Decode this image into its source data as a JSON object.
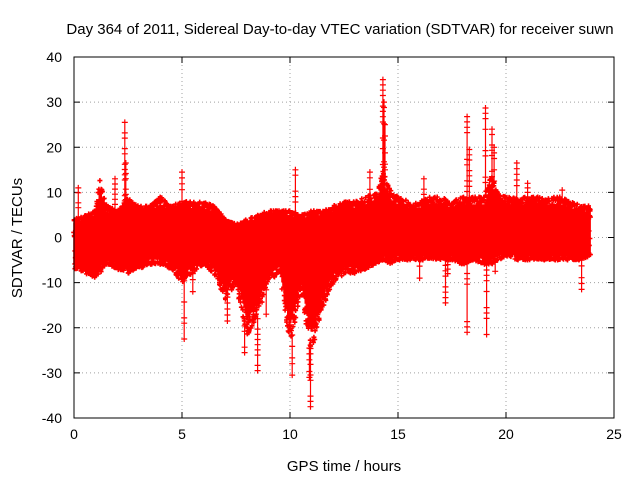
{
  "chart_data": {
    "type": "scatter",
    "title": "Day 364 of 2011, Sidereal Day-to-day VTEC variation (SDTVAR) for receiver suwn",
    "xlabel": "GPS time / hours",
    "ylabel": "SDTVAR / TECUs",
    "xlim": [
      0,
      25
    ],
    "ylim": [
      -40,
      40
    ],
    "xticks": [
      0,
      5,
      10,
      15,
      20,
      25
    ],
    "yticks": [
      -40,
      -30,
      -20,
      -10,
      0,
      10,
      20,
      30,
      40
    ],
    "grid": true,
    "marker": "+",
    "series_color": "#ff0000",
    "envelope": {
      "description": "Dense band of plus-markers; upper and lower envelope (TECU) vs GPS hour",
      "x": [
        0.0,
        0.5,
        1.0,
        1.2,
        1.5,
        2.0,
        2.5,
        3.0,
        3.5,
        4.0,
        4.5,
        5.0,
        5.5,
        6.0,
        6.5,
        7.0,
        7.5,
        8.0,
        8.5,
        9.0,
        9.5,
        10.0,
        10.5,
        11.0,
        11.5,
        12.0,
        12.5,
        13.0,
        13.5,
        14.0,
        14.3,
        14.7,
        15.0,
        15.5,
        16.0,
        16.5,
        17.0,
        17.5,
        18.0,
        18.5,
        19.0,
        19.3,
        19.7,
        20.0,
        20.5,
        21.0,
        21.5,
        22.0,
        22.5,
        23.0,
        23.5,
        23.9
      ],
      "upper": [
        4,
        5,
        6,
        13,
        7,
        6,
        9,
        7,
        7,
        9,
        7,
        8,
        8,
        8,
        7,
        4,
        3,
        4,
        5,
        6,
        6,
        6,
        5,
        6,
        6,
        7,
        8,
        8,
        9,
        10,
        15,
        10,
        9,
        8,
        8,
        9,
        9,
        8,
        9,
        9,
        9,
        14,
        10,
        9,
        9,
        9,
        9,
        9,
        9,
        8,
        7,
        7
      ],
      "lower": [
        -7,
        -8,
        -9,
        -8,
        -6,
        -7,
        -8,
        -7,
        -6,
        -6,
        -7,
        -10,
        -8,
        -6,
        -8,
        -14,
        -10,
        -22,
        -18,
        -10,
        -8,
        -24,
        -12,
        -26,
        -16,
        -10,
        -8,
        -8,
        -7,
        -6,
        -5,
        -6,
        -5,
        -5,
        -5,
        -5,
        -5,
        -5,
        -6,
        -5,
        -6,
        -6,
        -5,
        -4,
        -5,
        -5,
        -5,
        -5,
        -5,
        -5,
        -5,
        -4
      ]
    },
    "spikes": [
      {
        "x": 2.35,
        "y": 25.5
      },
      {
        "x": 2.4,
        "y": 16.5
      },
      {
        "x": 1.9,
        "y": 13
      },
      {
        "x": 0.2,
        "y": 11
      },
      {
        "x": 5.0,
        "y": 14.5
      },
      {
        "x": 5.1,
        "y": -22.5
      },
      {
        "x": 5.5,
        "y": -12
      },
      {
        "x": 7.1,
        "y": -18.5
      },
      {
        "x": 7.9,
        "y": -25.5
      },
      {
        "x": 8.5,
        "y": -29.5
      },
      {
        "x": 8.9,
        "y": -17
      },
      {
        "x": 10.1,
        "y": -30.5
      },
      {
        "x": 10.25,
        "y": 15
      },
      {
        "x": 10.95,
        "y": -37.5
      },
      {
        "x": 10.9,
        "y": -31
      },
      {
        "x": 13.7,
        "y": 14.5
      },
      {
        "x": 14.3,
        "y": 35
      },
      {
        "x": 14.35,
        "y": 30
      },
      {
        "x": 14.4,
        "y": 25
      },
      {
        "x": 16.2,
        "y": 13
      },
      {
        "x": 16.0,
        "y": -9
      },
      {
        "x": 17.2,
        "y": -14.5
      },
      {
        "x": 17.3,
        "y": -8
      },
      {
        "x": 18.2,
        "y": 26.8
      },
      {
        "x": 18.2,
        "y": -21
      },
      {
        "x": 18.3,
        "y": 19.5
      },
      {
        "x": 19.05,
        "y": 28.7
      },
      {
        "x": 19.1,
        "y": -21.5
      },
      {
        "x": 19.35,
        "y": 24
      },
      {
        "x": 19.45,
        "y": 20
      },
      {
        "x": 19.5,
        "y": -7.5
      },
      {
        "x": 20.5,
        "y": 16.5
      },
      {
        "x": 21.0,
        "y": 12
      },
      {
        "x": 22.6,
        "y": 10.5
      },
      {
        "x": 23.5,
        "y": -11.5
      }
    ]
  }
}
